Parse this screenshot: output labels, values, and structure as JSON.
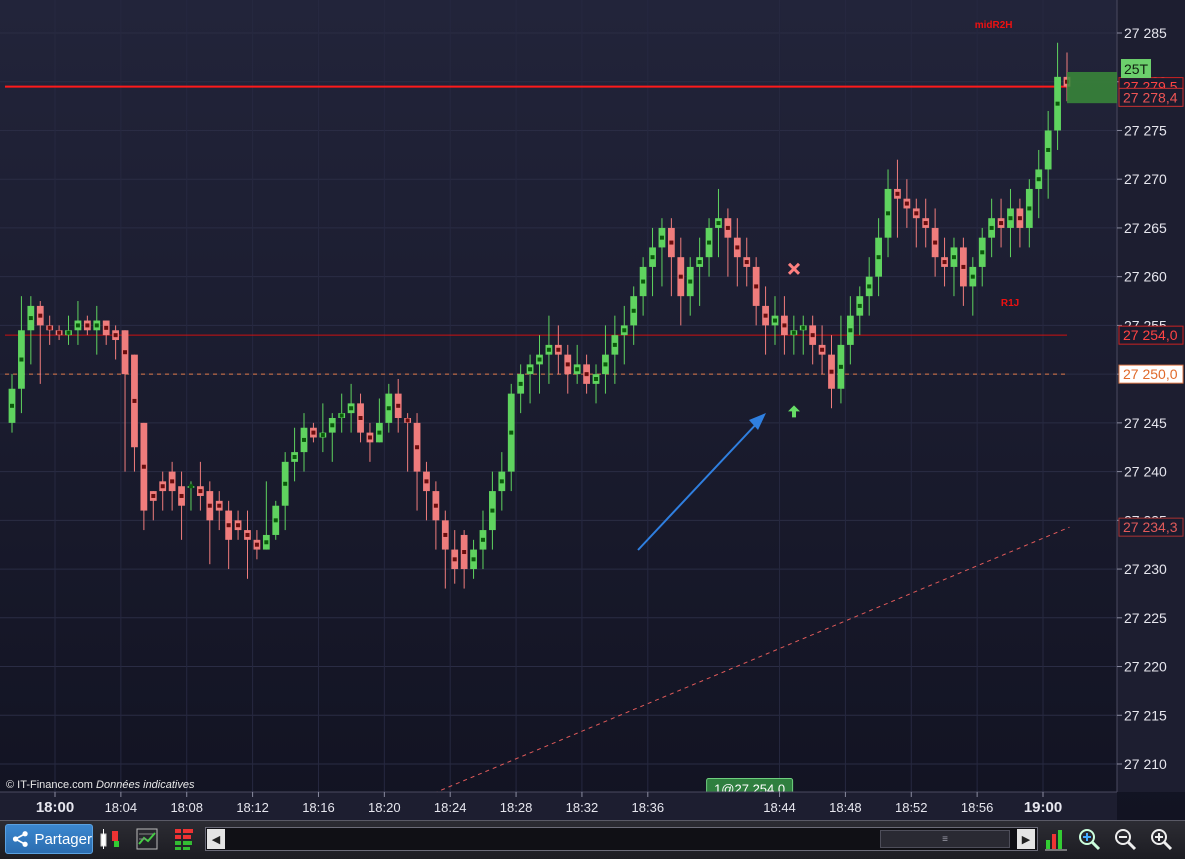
{
  "chart_data": {
    "type": "candlestick",
    "x_tick_labels": [
      "18:00",
      "18:04",
      "18:08",
      "18:12",
      "18:16",
      "18:20",
      "18:24",
      "18:28",
      "18:32",
      "18:36",
      "18:44",
      "18:48",
      "18:52",
      "18:56",
      "19:00"
    ],
    "x_tick_major": [
      "18:00",
      "19:00"
    ],
    "y_ticks": [
      27210,
      27215,
      27220,
      27225,
      27230,
      27235,
      27240,
      27245,
      27250,
      27255,
      27260,
      27265,
      27270,
      27275,
      27280,
      27285
    ],
    "y_range": [
      27207,
      27288
    ],
    "y_tick_suffix": "",
    "candles": [
      [
        27245,
        27250,
        27244,
        27248.5
      ],
      [
        27248.5,
        27258,
        27246,
        27254.5
      ],
      [
        27254.5,
        27258,
        27251,
        27257
      ],
      [
        27257,
        27257.5,
        27249,
        27255
      ],
      [
        27255,
        27256,
        27253,
        27254.5
      ],
      [
        27254.5,
        27255,
        27253.5,
        27254
      ],
      [
        27254,
        27256,
        27253,
        27254.5
      ],
      [
        27254.5,
        27257.5,
        27253,
        27255.5
      ],
      [
        27255.5,
        27256,
        27254,
        27254.5
      ],
      [
        27254.5,
        27257,
        27252,
        27255.5
      ],
      [
        27255.5,
        27255.5,
        27253,
        27254
      ],
      [
        27254.5,
        27255,
        27251.5,
        27253.5
      ],
      [
        27254.5,
        27254.5,
        27240,
        27250
      ],
      [
        27252,
        27252,
        27240,
        27242.5
      ],
      [
        27245,
        27245,
        27234,
        27236
      ],
      [
        27238,
        27238,
        27235,
        27237
      ],
      [
        27239,
        27240,
        27236,
        27238
      ],
      [
        27240,
        27241,
        27236,
        27238
      ],
      [
        27238.5,
        27240,
        27233,
        27236.5
      ],
      [
        27238.5,
        27239,
        27236,
        27238.5
      ],
      [
        27238.5,
        27241,
        27236,
        27237.5
      ],
      [
        27238,
        27239,
        27230.5,
        27235
      ],
      [
        27237,
        27238,
        27234,
        27236
      ],
      [
        27236,
        27237,
        27230,
        27233
      ],
      [
        27235,
        27236,
        27233,
        27234
      ],
      [
        27234,
        27236,
        27229,
        27233
      ],
      [
        27233,
        27234,
        27231,
        27232
      ],
      [
        27232,
        27239,
        27232,
        27233.5
      ],
      [
        27233.5,
        27237,
        27233,
        27236.5
      ],
      [
        27236.5,
        27242,
        27234,
        27241
      ],
      [
        27241,
        27244.5,
        27239,
        27242
      ],
      [
        27242,
        27246,
        27240,
        27244.5
      ],
      [
        27244.5,
        27245,
        27243,
        27243.5
      ],
      [
        27243.5,
        27247,
        27242,
        27244
      ],
      [
        27244,
        27246,
        27241,
        27245.5
      ],
      [
        27245.5,
        27248,
        27244,
        27246
      ],
      [
        27246,
        27249,
        27244,
        27247
      ],
      [
        27247,
        27248,
        27243,
        27244
      ],
      [
        27244,
        27245,
        27241,
        27243
      ],
      [
        27243,
        27247.5,
        27243,
        27245
      ],
      [
        27245,
        27249,
        27244,
        27248
      ],
      [
        27248,
        27249.5,
        27244,
        27245.5
      ],
      [
        27245.5,
        27246,
        27240,
        27245
      ],
      [
        27245,
        27246,
        27236,
        27240
      ],
      [
        27240,
        27241,
        27235,
        27238
      ],
      [
        27238,
        27239,
        27232,
        27235
      ],
      [
        27235,
        27236,
        27228,
        27232
      ],
      [
        27232,
        27234,
        27228.5,
        27230
      ],
      [
        27233.5,
        27234,
        27228,
        27230
      ],
      [
        27230,
        27233,
        27229,
        27232
      ],
      [
        27232,
        27236,
        27230,
        27234
      ],
      [
        27234,
        27240,
        27232,
        27238
      ],
      [
        27238,
        27242,
        27236,
        27240
      ],
      [
        27240,
        27249,
        27238,
        27248
      ],
      [
        27248,
        27251,
        27246,
        27250
      ],
      [
        27250,
        27252,
        27247,
        27251
      ],
      [
        27251,
        27254,
        27248,
        27252
      ],
      [
        27252,
        27256,
        27249,
        27253
      ],
      [
        27253,
        27255,
        27250,
        27252
      ],
      [
        27252,
        27253,
        27248,
        27250
      ],
      [
        27250,
        27253,
        27249,
        27251
      ],
      [
        27251,
        27252,
        27248,
        27249
      ],
      [
        27249,
        27251,
        27247,
        27250
      ],
      [
        27250,
        27255,
        27248,
        27252
      ],
      [
        27252,
        27256,
        27249,
        27254
      ],
      [
        27254,
        27257,
        27251,
        27255
      ],
      [
        27255,
        27259,
        27253,
        27258
      ],
      [
        27258,
        27262,
        27256,
        27261
      ],
      [
        27261,
        27265,
        27258,
        27263
      ],
      [
        27263,
        27266,
        27259,
        27265
      ],
      [
        27265,
        27266,
        27258,
        27262
      ],
      [
        27262,
        27264,
        27255,
        27258
      ],
      [
        27258,
        27262,
        27256,
        27261
      ],
      [
        27261,
        27264,
        27257,
        27262
      ],
      [
        27262,
        27266,
        27260,
        27265
      ],
      [
        27265,
        27269,
        27262,
        27266
      ],
      [
        27266,
        27267,
        27260,
        27264
      ],
      [
        27264,
        27266,
        27259,
        27262
      ],
      [
        27262,
        27264,
        27259,
        27261
      ],
      [
        27261,
        27262,
        27255,
        27257
      ],
      [
        27257,
        27259,
        27252,
        27255
      ],
      [
        27255,
        27258,
        27253,
        27256
      ],
      [
        27256,
        27258,
        27252,
        27254
      ],
      [
        27254,
        27256,
        27252,
        27254.5
      ],
      [
        27254.5,
        27256,
        27252,
        27255
      ],
      [
        27255,
        27256,
        27251,
        27253
      ],
      [
        27253,
        27255,
        27250,
        27252
      ],
      [
        27252,
        27254,
        27246.5,
        27248.5
      ],
      [
        27248.5,
        27256,
        27247,
        27253
      ],
      [
        27253,
        27258,
        27251,
        27256
      ],
      [
        27256,
        27259,
        27254,
        27258
      ],
      [
        27258,
        27262,
        27256,
        27260
      ],
      [
        27260,
        27266,
        27258,
        27264
      ],
      [
        27264,
        27271,
        27262,
        27269
      ],
      [
        27269,
        27272,
        27264,
        27268
      ],
      [
        27268,
        27270,
        27265,
        27267
      ],
      [
        27267,
        27268,
        27263,
        27266
      ],
      [
        27266,
        27268,
        27263,
        27265
      ],
      [
        27265,
        27267,
        27260,
        27262
      ],
      [
        27262,
        27264,
        27259,
        27261
      ],
      [
        27261,
        27264,
        27258,
        27263
      ],
      [
        27263,
        27264,
        27257,
        27259
      ],
      [
        27259,
        27262,
        27256,
        27261
      ],
      [
        27261,
        27265,
        27259,
        27264
      ],
      [
        27264,
        27268,
        27262,
        27266
      ],
      [
        27266,
        27268,
        27263,
        27265
      ],
      [
        27265,
        27269,
        27262,
        27267
      ],
      [
        27267,
        27268,
        27263,
        27265
      ],
      [
        27265,
        27270,
        27263,
        27269
      ],
      [
        27269,
        27273,
        27266,
        27271
      ],
      [
        27271,
        27277,
        27268,
        27275
      ],
      [
        27275,
        27284,
        27273,
        27280.5
      ],
      [
        27280.5,
        27283,
        27278,
        27279.5
      ]
    ],
    "candle_colors": {
      "up": "#5fd35f",
      "down": "#ef7c7c"
    },
    "horizontal_lines": [
      {
        "label": "27 279,5",
        "value": 27279.5,
        "style": "solid",
        "color": "#ff1a1a"
      },
      {
        "label": "27 254,0",
        "value": 27254.0,
        "style": "solid",
        "color": "#cc1111"
      },
      {
        "label": "27 250,0",
        "value": 27250.0,
        "style": "dashed",
        "color": "#e07a4a"
      }
    ],
    "trend_line": {
      "label": "27 234,3",
      "x0_time": "18:23",
      "y0": 27207,
      "x1_time": "19:01",
      "y1": 27234.3,
      "color": "#e05a5a"
    },
    "price_tags": [
      {
        "text": "27 279,5",
        "kind": "line-red"
      },
      {
        "text": "27 278,4",
        "kind": "last-price"
      },
      {
        "text": "27 254,0",
        "kind": "line-red"
      },
      {
        "text": "27 250,0",
        "kind": "line-orange"
      },
      {
        "text": "27 234,3",
        "kind": "trend"
      },
      {
        "text": "25T",
        "kind": "badge"
      }
    ],
    "annotations": [
      {
        "text": "midR2H",
        "color": "#ee1111",
        "anchor_time": "18:57",
        "anchor_value": 27285.5
      },
      {
        "text": "R1J",
        "color": "#ee1111",
        "anchor_time": "18:58",
        "anchor_value": 27257
      },
      {
        "text": "1@27 254,0",
        "kind": "order-label",
        "anchor_time": "18:42",
        "anchor_value": 27208
      }
    ]
  },
  "footer": {
    "copyright": "© IT-Finance.com",
    "disclaimer": "Données indicatives"
  },
  "toolbar": {
    "share_label": "Partager",
    "scroll_thumb_glyph": "≡",
    "scroll_left_glyph": "◀",
    "scroll_right_glyph": "▶"
  }
}
